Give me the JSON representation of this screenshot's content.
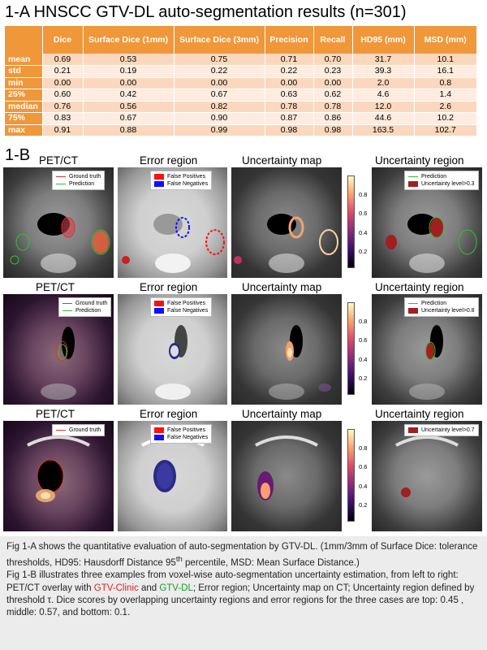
{
  "section_a": {
    "title": "1-A  HNSCC GTV-DL auto-segmentation results (n=301)"
  },
  "table": {
    "headers": [
      "",
      "Dice",
      "Surface Dice (1mm)",
      "Surface Dice (3mm)",
      "Precision",
      "Recall",
      "HD95 (mm)",
      "MSD (mm)"
    ],
    "rows": [
      [
        "mean",
        "0.69",
        "0.53",
        "0.75",
        "0.71",
        "0.70",
        "31.7",
        "10.1"
      ],
      [
        "std",
        "0.21",
        "0.19",
        "0.22",
        "0.22",
        "0.23",
        "39.3",
        "16.1"
      ],
      [
        "min",
        "0.00",
        "0.00",
        "0.00",
        "0.00",
        "0.00",
        "2.0",
        "0.8"
      ],
      [
        "25%",
        "0.60",
        "0.42",
        "0.67",
        "0.63",
        "0.62",
        "4.6",
        "1.4"
      ],
      [
        "median",
        "0.76",
        "0.56",
        "0.82",
        "0.78",
        "0.78",
        "12.0",
        "2.6"
      ],
      [
        "75%",
        "0.83",
        "0.67",
        "0.90",
        "0.87",
        "0.86",
        "44.6",
        "10.2"
      ],
      [
        "max",
        "0.91",
        "0.88",
        "0.99",
        "0.98",
        "0.98",
        "163.5",
        "102.7"
      ]
    ]
  },
  "section_b": {
    "title": "1-B"
  },
  "panel_titles": {
    "petct": "PET/CT",
    "error": "Error region",
    "umap": "Uncertainty map",
    "uregion": "Uncertainty region"
  },
  "legend": {
    "ground_truth": "Ground truth",
    "prediction": "Prediction",
    "false_positives": "False Positives",
    "false_negatives": "False Negatives",
    "unc_1": "Uncertainty level>0.3",
    "unc_2": "Uncertainty level>0.8",
    "unc_3": "Uncertainty level>0.7"
  },
  "colorbar_ticks": [
    "0.8",
    "0.6",
    "0.4",
    "0.2"
  ],
  "colors": {
    "accent_orange": "#f0973a",
    "row_light": "#fdecdf",
    "row_dark": "#fbd8bd",
    "gt_red": "#e03030",
    "pred_green": "#30c030",
    "fp_red": "#ff1010",
    "fn_blue": "#1010ff",
    "unc_region": "#a02020"
  },
  "caption": {
    "p1_a": "Fig 1-A shows the quantitative evaluation of auto-segmentation by GTV-DL. (1mm/3mm of Surface Dice: tolerance thresholds, HD95: Hausdorff Distance 95",
    "p1_sup": "th",
    "p1_b": " percentile, MSD: Mean Surface Distance.)",
    "p2_a": "Fig 1-B illustrates three examples from voxel-wise auto-segmentation uncertainty estimation, from left to right: PET/CT overlay with ",
    "p2_red": "GTV-Clinic",
    "p2_and": " and ",
    "p2_green": "GTV-DL",
    "p2_b": "; Error region; Uncertainty map on CT; Uncertainty region defined by threshold τ. Dice scores by overlapping uncertainty regions and error regions for the three cases are top: 0.45 , middle: 0.57, and bottom: 0.1."
  }
}
